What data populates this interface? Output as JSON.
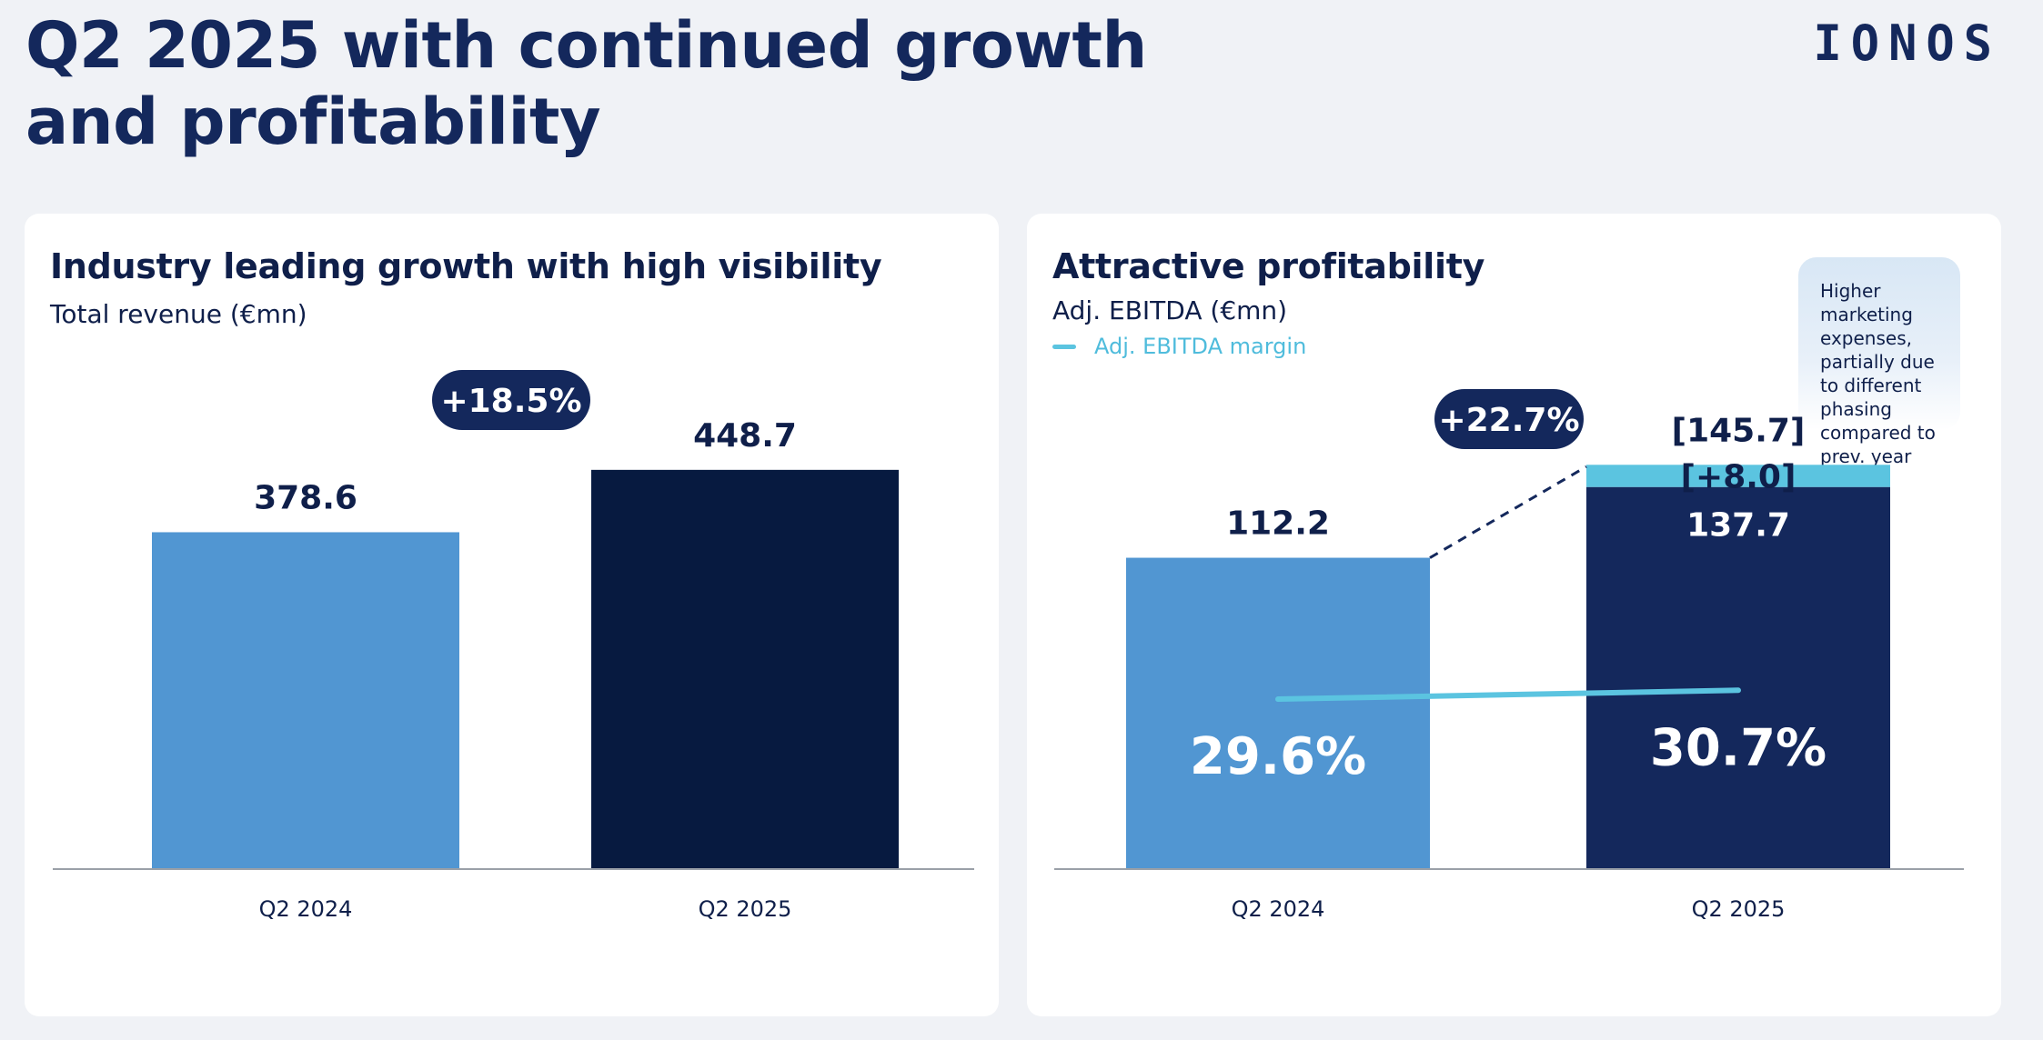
{
  "page": {
    "title_line1": "Q2 2025 with continued growth",
    "title_line2": "and profitability",
    "logo": "IONOS"
  },
  "left_panel": {
    "heading": "Industry leading growth with high visibility",
    "subtitle": "Total revenue (€mn)"
  },
  "right_panel": {
    "heading": "Attractive profitability",
    "subtitle": "Adj. EBITDA (€mn)",
    "legend_label": "Adj. EBITDA margin",
    "note": "Higher marketing expenses, partially due to different phasing compared to prev. year"
  },
  "colors": {
    "bar_2024": "#5196d2",
    "bar_2025_revenue": "#071a40",
    "bar_2025_ebitda": "#14285c",
    "increment": "#5bc4e0",
    "margin_line": "#5bc4e0",
    "pill": "#14285c",
    "axis": "#9aa0a8"
  },
  "chart_data": [
    {
      "type": "bar",
      "title": "Industry leading growth with high visibility",
      "ylabel": "Total revenue (€mn)",
      "categories": [
        "Q2 2024",
        "Q2 2025"
      ],
      "values": [
        378.6,
        448.7
      ],
      "value_labels": [
        "378.6",
        "448.7"
      ],
      "growth_label": "+18.5%",
      "ylim": [
        0,
        470
      ]
    },
    {
      "type": "bar",
      "title": "Attractive profitability",
      "ylabel": "Adj. EBITDA (€mn)",
      "categories": [
        "Q2 2024",
        "Q2 2025"
      ],
      "values": [
        112.2,
        137.7
      ],
      "value_labels": [
        "112.2",
        "137.7"
      ],
      "increment": 8.0,
      "increment_label": "[+8.0]",
      "adjusted_total": 145.7,
      "adjusted_total_label": "[145.7]",
      "growth_label": "+22.7%",
      "margin_series": {
        "name": "Adj. EBITDA margin",
        "values": [
          29.6,
          30.7
        ],
        "labels": [
          "29.6%",
          "30.7%"
        ]
      },
      "ylim": [
        0,
        153
      ]
    }
  ]
}
